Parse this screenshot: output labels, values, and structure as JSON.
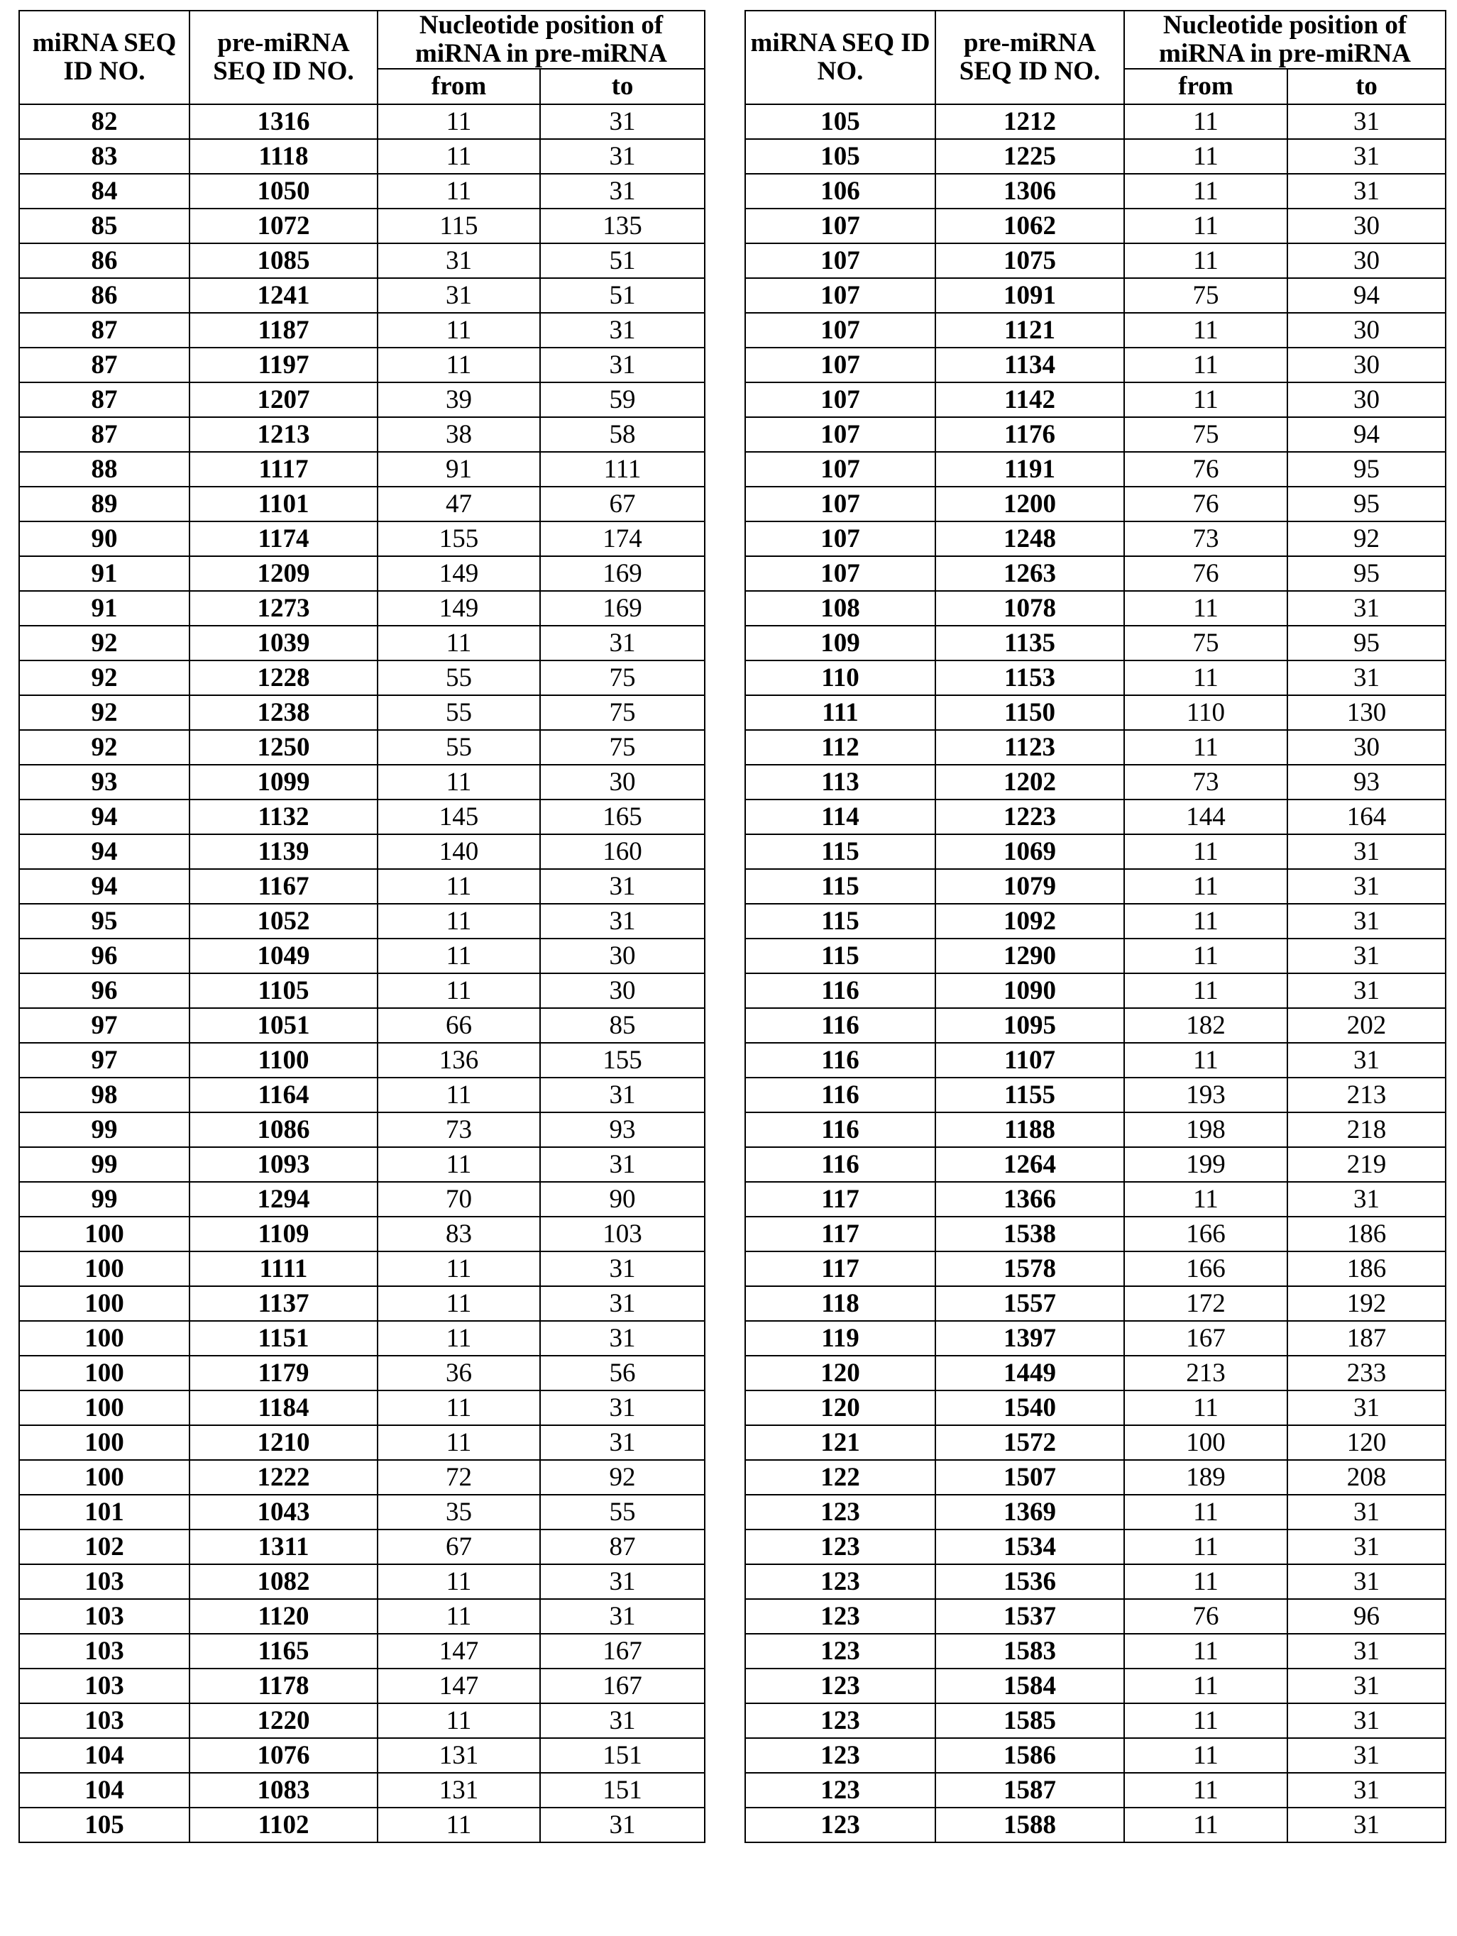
{
  "headers": {
    "mirna_id": "miRNA SEQ ID NO.",
    "pre_mirna_id": "pre-miRNA SEQ ID NO.",
    "position_group": "Nucleotide position of miRNA in pre-miRNA",
    "from": "from",
    "to": "to"
  },
  "left_rows": [
    [
      "82",
      "1316",
      "11",
      "31"
    ],
    [
      "83",
      "1118",
      "11",
      "31"
    ],
    [
      "84",
      "1050",
      "11",
      "31"
    ],
    [
      "85",
      "1072",
      "115",
      "135"
    ],
    [
      "86",
      "1085",
      "31",
      "51"
    ],
    [
      "86",
      "1241",
      "31",
      "51"
    ],
    [
      "87",
      "1187",
      "11",
      "31"
    ],
    [
      "87",
      "1197",
      "11",
      "31"
    ],
    [
      "87",
      "1207",
      "39",
      "59"
    ],
    [
      "87",
      "1213",
      "38",
      "58"
    ],
    [
      "88",
      "1117",
      "91",
      "111"
    ],
    [
      "89",
      "1101",
      "47",
      "67"
    ],
    [
      "90",
      "1174",
      "155",
      "174"
    ],
    [
      "91",
      "1209",
      "149",
      "169"
    ],
    [
      "91",
      "1273",
      "149",
      "169"
    ],
    [
      "92",
      "1039",
      "11",
      "31"
    ],
    [
      "92",
      "1228",
      "55",
      "75"
    ],
    [
      "92",
      "1238",
      "55",
      "75"
    ],
    [
      "92",
      "1250",
      "55",
      "75"
    ],
    [
      "93",
      "1099",
      "11",
      "30"
    ],
    [
      "94",
      "1132",
      "145",
      "165"
    ],
    [
      "94",
      "1139",
      "140",
      "160"
    ],
    [
      "94",
      "1167",
      "11",
      "31"
    ],
    [
      "95",
      "1052",
      "11",
      "31"
    ],
    [
      "96",
      "1049",
      "11",
      "30"
    ],
    [
      "96",
      "1105",
      "11",
      "30"
    ],
    [
      "97",
      "1051",
      "66",
      "85"
    ],
    [
      "97",
      "1100",
      "136",
      "155"
    ],
    [
      "98",
      "1164",
      "11",
      "31"
    ],
    [
      "99",
      "1086",
      "73",
      "93"
    ],
    [
      "99",
      "1093",
      "11",
      "31"
    ],
    [
      "99",
      "1294",
      "70",
      "90"
    ],
    [
      "100",
      "1109",
      "83",
      "103"
    ],
    [
      "100",
      "1111",
      "11",
      "31"
    ],
    [
      "100",
      "1137",
      "11",
      "31"
    ],
    [
      "100",
      "1151",
      "11",
      "31"
    ],
    [
      "100",
      "1179",
      "36",
      "56"
    ],
    [
      "100",
      "1184",
      "11",
      "31"
    ],
    [
      "100",
      "1210",
      "11",
      "31"
    ],
    [
      "100",
      "1222",
      "72",
      "92"
    ],
    [
      "101",
      "1043",
      "35",
      "55"
    ],
    [
      "102",
      "1311",
      "67",
      "87"
    ],
    [
      "103",
      "1082",
      "11",
      "31"
    ],
    [
      "103",
      "1120",
      "11",
      "31"
    ],
    [
      "103",
      "1165",
      "147",
      "167"
    ],
    [
      "103",
      "1178",
      "147",
      "167"
    ],
    [
      "103",
      "1220",
      "11",
      "31"
    ],
    [
      "104",
      "1076",
      "131",
      "151"
    ],
    [
      "104",
      "1083",
      "131",
      "151"
    ],
    [
      "105",
      "1102",
      "11",
      "31"
    ]
  ],
  "right_rows": [
    [
      "105",
      "1212",
      "11",
      "31"
    ],
    [
      "105",
      "1225",
      "11",
      "31"
    ],
    [
      "106",
      "1306",
      "11",
      "31"
    ],
    [
      "107",
      "1062",
      "11",
      "30"
    ],
    [
      "107",
      "1075",
      "11",
      "30"
    ],
    [
      "107",
      "1091",
      "75",
      "94"
    ],
    [
      "107",
      "1121",
      "11",
      "30"
    ],
    [
      "107",
      "1134",
      "11",
      "30"
    ],
    [
      "107",
      "1142",
      "11",
      "30"
    ],
    [
      "107",
      "1176",
      "75",
      "94"
    ],
    [
      "107",
      "1191",
      "76",
      "95"
    ],
    [
      "107",
      "1200",
      "76",
      "95"
    ],
    [
      "107",
      "1248",
      "73",
      "92"
    ],
    [
      "107",
      "1263",
      "76",
      "95"
    ],
    [
      "108",
      "1078",
      "11",
      "31"
    ],
    [
      "109",
      "1135",
      "75",
      "95"
    ],
    [
      "110",
      "1153",
      "11",
      "31"
    ],
    [
      "111",
      "1150",
      "110",
      "130"
    ],
    [
      "112",
      "1123",
      "11",
      "30"
    ],
    [
      "113",
      "1202",
      "73",
      "93"
    ],
    [
      "114",
      "1223",
      "144",
      "164"
    ],
    [
      "115",
      "1069",
      "11",
      "31"
    ],
    [
      "115",
      "1079",
      "11",
      "31"
    ],
    [
      "115",
      "1092",
      "11",
      "31"
    ],
    [
      "115",
      "1290",
      "11",
      "31"
    ],
    [
      "116",
      "1090",
      "11",
      "31"
    ],
    [
      "116",
      "1095",
      "182",
      "202"
    ],
    [
      "116",
      "1107",
      "11",
      "31"
    ],
    [
      "116",
      "1155",
      "193",
      "213"
    ],
    [
      "116",
      "1188",
      "198",
      "218"
    ],
    [
      "116",
      "1264",
      "199",
      "219"
    ],
    [
      "117",
      "1366",
      "11",
      "31"
    ],
    [
      "117",
      "1538",
      "166",
      "186"
    ],
    [
      "117",
      "1578",
      "166",
      "186"
    ],
    [
      "118",
      "1557",
      "172",
      "192"
    ],
    [
      "119",
      "1397",
      "167",
      "187"
    ],
    [
      "120",
      "1449",
      "213",
      "233"
    ],
    [
      "120",
      "1540",
      "11",
      "31"
    ],
    [
      "121",
      "1572",
      "100",
      "120"
    ],
    [
      "122",
      "1507",
      "189",
      "208"
    ],
    [
      "123",
      "1369",
      "11",
      "31"
    ],
    [
      "123",
      "1534",
      "11",
      "31"
    ],
    [
      "123",
      "1536",
      "11",
      "31"
    ],
    [
      "123",
      "1537",
      "76",
      "96"
    ],
    [
      "123",
      "1583",
      "11",
      "31"
    ],
    [
      "123",
      "1584",
      "11",
      "31"
    ],
    [
      "123",
      "1585",
      "11",
      "31"
    ],
    [
      "123",
      "1586",
      "11",
      "31"
    ],
    [
      "123",
      "1587",
      "11",
      "31"
    ],
    [
      "123",
      "1588",
      "11",
      "31"
    ]
  ]
}
